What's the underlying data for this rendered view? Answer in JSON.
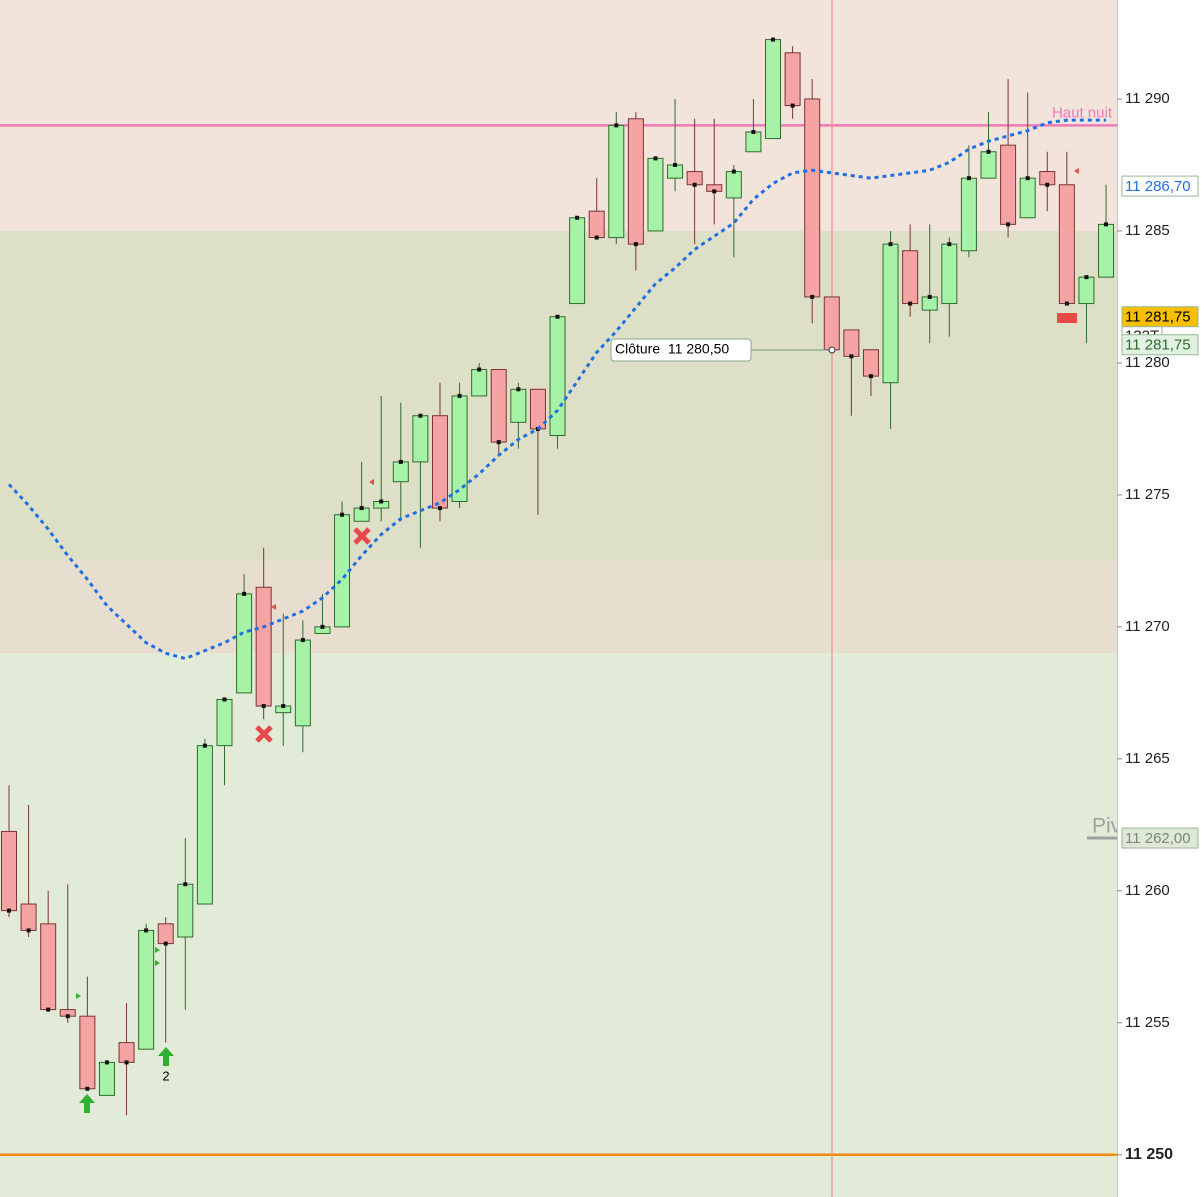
{
  "chart_data": {
    "type": "candlestick",
    "categories": [
      null,
      null,
      null,
      null,
      null,
      null,
      null,
      null,
      null,
      null,
      null,
      null,
      null,
      null,
      null,
      null,
      null,
      null,
      null,
      null,
      null,
      null,
      null,
      null,
      null,
      null,
      null,
      null,
      null,
      null,
      null,
      null,
      null,
      null,
      null,
      null,
      null,
      null,
      null,
      null,
      null,
      null,
      null,
      null,
      null,
      null,
      null,
      null,
      null,
      null,
      null,
      null,
      null,
      null,
      null,
      null,
      null
    ],
    "open": [
      11262.25,
      11259.5,
      11258.75,
      11255.5,
      11255.25,
      11252.25,
      11254.25,
      11254,
      11258.75,
      11258.25,
      11259.5,
      11265.5,
      11267.5,
      11271.5,
      11266.75,
      11266.25,
      11269.75,
      11270,
      11274,
      11274.5,
      11275.5,
      11276.25,
      11278,
      11274.75,
      11278.75,
      11279.75,
      11277.75,
      11279,
      11277.25,
      11282.25,
      11285.75,
      11284.75,
      11289.25,
      11285,
      11287,
      11287.25,
      11286.75,
      11286.25,
      11288,
      11288.5,
      11291.75,
      11290,
      11282.5,
      11281.25,
      11280.5,
      11279.25,
      11284.25,
      11282,
      11282.25,
      11284.25,
      11287,
      11288.25,
      11285.5,
      11287.25,
      11286.75,
      11282.25,
      11283.25
    ],
    "high": [
      11264,
      11263.25,
      11260,
      11260.25,
      11256.75,
      11253.5,
      11255.75,
      11258.75,
      11259,
      11262,
      11265.75,
      11267.25,
      11272,
      11273,
      11270.5,
      11270.25,
      11271.25,
      11274.75,
      11276.25,
      11278.75,
      11278.5,
      11278,
      11279.25,
      11279.25,
      11280,
      11279.75,
      11279.25,
      11279,
      11281.75,
      11285.5,
      11287,
      11289.5,
      11289.5,
      11287.75,
      11290,
      11289.25,
      11289.25,
      11287.5,
      11290,
      11292.25,
      11292,
      11290.75,
      11282.5,
      11281.25,
      11280.5,
      11285,
      11285.25,
      11285.25,
      11284.75,
      11288.25,
      11289.5,
      11290.75,
      11290.25,
      11288,
      11288,
      11283.25,
      11286.75
    ],
    "low": [
      11259,
      11258.25,
      11255.5,
      11255,
      11252.5,
      11252.25,
      11251.5,
      11254,
      11254.25,
      11255.5,
      11259.5,
      11264,
      11267.5,
      11266.5,
      11265.5,
      11265.25,
      11269.75,
      11270,
      11274,
      11274,
      11274,
      11273,
      11274,
      11274.5,
      11278.75,
      11276.5,
      11276.75,
      11274.25,
      11276.75,
      11282.25,
      11284.75,
      11284.5,
      11283.5,
      11285,
      11286.5,
      11284.5,
      11285.25,
      11284,
      11288,
      11288.5,
      11289.25,
      11281.5,
      11280.5,
      11278,
      11278.75,
      11277.5,
      11281.75,
      11280.75,
      11281,
      11284,
      11287,
      11284.75,
      11285.5,
      11285.75,
      11282.25,
      11280.75,
      11283.25
    ],
    "close": [
      11259.25,
      11258.5,
      11255.5,
      11255.25,
      11252.5,
      11253.5,
      11253.5,
      11258.5,
      11258,
      11260.25,
      11265.5,
      11267.25,
      11271.25,
      11267,
      11267,
      11269.5,
      11270,
      11274.25,
      11274.5,
      11274.75,
      11276.25,
      11278,
      11274.5,
      11278.75,
      11279.75,
      11277,
      11279,
      11277.5,
      11281.75,
      11285.5,
      11284.75,
      11289,
      11284.5,
      11287.75,
      11287.5,
      11286.75,
      11286.5,
      11287.25,
      11288.75,
      11292.25,
      11289.75,
      11282.5,
      11280.5,
      11280.25,
      11279.5,
      11284.5,
      11282.25,
      11282.5,
      11284.5,
      11287,
      11288,
      11285.25,
      11287,
      11286.75,
      11282.25,
      11283.25,
      11285.25
    ],
    "up_color": "#a6f2a6",
    "up_border": "#2f6b2f",
    "down_color": "#f5a3a3",
    "down_border": "#7a3434",
    "moving_average": {
      "color": "#1f6fe5",
      "values": [
        11275.4,
        11274.6,
        11273.7,
        11272.7,
        11271.8,
        11270.8,
        11270.1,
        11269.4,
        11269.0,
        11268.8,
        11269.1,
        11269.4,
        11269.8,
        11270.0,
        11270.3,
        11270.6,
        11271.1,
        11271.8,
        11272.7,
        11273.5,
        11274.1,
        11274.4,
        11274.7,
        11275.2,
        11275.8,
        11276.5,
        11277.1,
        11277.5,
        11278.2,
        11279.3,
        11280.4,
        11281.2,
        11282.1,
        11283.0,
        11283.6,
        11284.3,
        11284.8,
        11285.3,
        11286.2,
        11286.8,
        11287.2,
        11287.3,
        11287.2,
        11287.1,
        11287.0,
        11287.1,
        11287.2,
        11287.3,
        11287.6,
        11288.1,
        11288.4,
        11288.6,
        11288.8,
        11289.1,
        11289.2,
        11289.2,
        11289.2
      ]
    },
    "zones": [
      {
        "from": 11285,
        "to": 11293.75,
        "color": "#f2e4da"
      },
      {
        "from": 11272.5,
        "to": 11285,
        "color": "#dedfc7"
      },
      {
        "from": 11269,
        "to": 11272.5,
        "color": "#e8ded0"
      },
      {
        "from": 11248.4,
        "to": 11269,
        "color": "#e2ebd7"
      }
    ],
    "levels": [
      {
        "value": 11289,
        "color": "#f07ab6",
        "label": "Haut nuit"
      },
      {
        "value": 11250,
        "color": "#f08a12"
      },
      {
        "value": 11262,
        "color": "#a0a0a0",
        "label": "Piv"
      }
    ],
    "price_tags": [
      {
        "value": 11286.7,
        "label": "11 286,70",
        "bg": "#ffffff",
        "fg": "#1f6fe5"
      },
      {
        "value": 11281.75,
        "label": "11 281,75",
        "bg": "#f6c000",
        "fg": "#000000"
      },
      {
        "value": 11281.75,
        "label": "11 281,75",
        "bg": "#e2f2e2",
        "fg": "#2f6b2f"
      },
      {
        "value": 11262,
        "label": "11 262,00",
        "bg": "#dfe8d6",
        "fg": "#7a8a72"
      }
    ],
    "tick_counter": "132T",
    "tooltip": "Clôture  11 280,50",
    "signal_count": "2",
    "ylim": [
      11248.4,
      11293.75
    ],
    "yticks": [
      {
        "value": 11250,
        "label": "11 250"
      },
      {
        "value": 11255,
        "label": "11 255"
      },
      {
        "value": 11260,
        "label": "11 260"
      },
      {
        "value": 11265,
        "label": "11 265"
      },
      {
        "value": 11270,
        "label": "11 270"
      },
      {
        "value": 11275,
        "label": "11 275"
      },
      {
        "value": 11280,
        "label": "11 280"
      },
      {
        "value": 11285,
        "label": "11 285"
      },
      {
        "value": 11290,
        "label": "11 290"
      }
    ]
  }
}
